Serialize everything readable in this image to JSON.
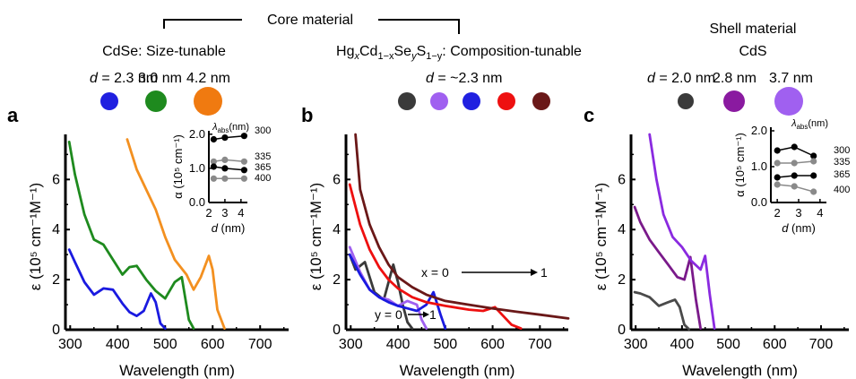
{
  "header": {
    "core_material": "Core material",
    "cdse_label": "CdSe: Size-tunable",
    "hgcdses_label": {
      "hg": "Hg",
      "x": "x",
      "cd": "Cd",
      "sub": "1−x",
      "se": "Se",
      "y": "y",
      "s": "S",
      "sub2": "1−y",
      "rest": ": Composition-tunable"
    },
    "shell_material": "Shell material",
    "shell_cds": "CdS"
  },
  "panels": [
    {
      "letter": "a",
      "sizes_prefix": "d",
      "sizes": [
        "= 2.3 nm",
        "3.0 nm",
        "4.2 nm"
      ],
      "dots": [
        "#2020e0",
        "#1e8a1e",
        "#f07a10"
      ],
      "xlabel": "Wavelength (nm)",
      "ylabel": "ε (10⁵ cm⁻¹M⁻¹)",
      "xticks": [
        "300",
        "400",
        "500",
        "600",
        "700"
      ],
      "yticks": [
        "0",
        "2",
        "4",
        "6"
      ]
    },
    {
      "letter": "b",
      "sizes_prefix": "d",
      "sizes": [
        "= ~2.3 nm"
      ],
      "dots": [
        "#3a3a3a",
        "#a060f0",
        "#2020e0",
        "#ee1010",
        "#6a1818"
      ],
      "xlabel": "Wavelength (nm)",
      "ylabel": "ε (10⁵ cm⁻¹M⁻¹)",
      "xticks": [
        "300",
        "400",
        "500",
        "600",
        "700"
      ],
      "yticks": [
        "0",
        "2",
        "4",
        "6"
      ],
      "annotations": {
        "x_arrow": "x = 0",
        "x_end": "1",
        "y_arrow": "y = 0",
        "y_end": "1"
      }
    },
    {
      "letter": "c",
      "sizes_prefix": "d",
      "sizes": [
        "= 2.0 nm",
        "2.8 nm",
        "3.7 nm"
      ],
      "dots": [
        "#3a3a3a",
        "#8a1aa0",
        "#a060f0"
      ],
      "xlabel": "Wavelength (nm)",
      "ylabel": "ε (10⁵ cm⁻¹M⁻¹)",
      "xticks": [
        "300",
        "400",
        "500",
        "600",
        "700"
      ],
      "yticks": [
        "0",
        "2",
        "4",
        "6"
      ]
    }
  ],
  "insets": [
    {
      "ylabel": "α (10⁵ cm⁻¹)",
      "xlabel": "d (nm)",
      "xticks": [
        "2",
        "3",
        "4"
      ],
      "yticks": [
        "0.0",
        "1.0",
        "2.0"
      ],
      "lambda_label": "λabs(nm)",
      "series_labels": [
        "300",
        "335",
        "365",
        "400"
      ]
    },
    {
      "ylabel": "α (10⁵ cm⁻¹)",
      "xlabel": "d (nm)",
      "xticks": [
        "2",
        "3",
        "4"
      ],
      "yticks": [
        "0.0",
        "1.0",
        "2.0"
      ],
      "lambda_label": "λabs(nm)",
      "series_labels": [
        "300",
        "335",
        "365",
        "400"
      ]
    }
  ],
  "chart_data": [
    {
      "type": "line",
      "panel": "a",
      "xlabel": "Wavelength (nm)",
      "ylabel": "ε (10⁵ cm⁻¹M⁻¹)",
      "xlim": [
        290,
        760
      ],
      "ylim": [
        0,
        7.8
      ],
      "series": [
        {
          "name": "2.3 nm",
          "color": "#1a1ae0",
          "x": [
            298,
            310,
            330,
            350,
            370,
            390,
            410,
            425,
            440,
            455,
            470,
            480,
            490,
            500
          ],
          "y": [
            3.2,
            2.7,
            1.9,
            1.4,
            1.65,
            1.6,
            1.05,
            0.7,
            0.55,
            0.75,
            1.45,
            1.1,
            0.25,
            0.05
          ]
        },
        {
          "name": "3.0 nm",
          "color": "#1e8a1e",
          "x": [
            298,
            310,
            330,
            350,
            370,
            390,
            410,
            425,
            440,
            460,
            480,
            500,
            520,
            535,
            550,
            560
          ],
          "y": [
            7.5,
            6.2,
            4.6,
            3.6,
            3.4,
            2.8,
            2.2,
            2.5,
            2.55,
            2.0,
            1.55,
            1.25,
            1.9,
            2.1,
            0.4,
            0.05
          ]
        },
        {
          "name": "4.2 nm",
          "color": "#f39020",
          "x": [
            420,
            440,
            460,
            480,
            500,
            520,
            545,
            560,
            575,
            592,
            600,
            610,
            625
          ],
          "y": [
            7.6,
            6.4,
            5.6,
            4.8,
            3.7,
            2.8,
            2.2,
            1.6,
            2.1,
            2.95,
            2.4,
            0.8,
            0.05
          ]
        }
      ]
    },
    {
      "type": "line",
      "panel": "b",
      "xlabel": "Wavelength (nm)",
      "ylabel": "ε (10⁵ cm⁻¹M⁻¹)",
      "xlim": [
        290,
        760
      ],
      "ylim": [
        0,
        7.8
      ],
      "series": [
        {
          "name": "x=0",
          "color": "#3a3a3a",
          "x": [
            298,
            310,
            330,
            350,
            370,
            390,
            400,
            410,
            420,
            430
          ],
          "y": [
            3.0,
            2.4,
            2.7,
            1.5,
            1.2,
            2.6,
            1.9,
            1.0,
            0.3,
            0.05
          ]
        },
        {
          "name": "",
          "color": "#a060f0",
          "x": [
            298,
            320,
            340,
            360,
            380,
            400,
            420,
            440,
            450,
            460
          ],
          "y": [
            3.3,
            2.3,
            1.6,
            1.3,
            1.2,
            0.95,
            1.15,
            1.0,
            0.4,
            0.05
          ]
        },
        {
          "name": "",
          "color": "#1a1ae0",
          "x": [
            298,
            320,
            340,
            360,
            380,
            400,
            420,
            440,
            460,
            475,
            490,
            500
          ],
          "y": [
            3.0,
            2.2,
            1.6,
            1.3,
            1.1,
            0.95,
            0.85,
            0.75,
            1.0,
            1.5,
            0.6,
            0.05
          ]
        },
        {
          "name": "",
          "color": "#ee1010",
          "x": [
            298,
            320,
            340,
            360,
            380,
            400,
            430,
            460,
            500,
            550,
            580,
            605,
            620,
            640,
            660
          ],
          "y": [
            5.8,
            4.2,
            3.2,
            2.5,
            2.0,
            1.65,
            1.3,
            1.1,
            0.95,
            0.8,
            0.75,
            0.9,
            0.6,
            0.2,
            0.05
          ]
        },
        {
          "name": "x=1",
          "color": "#6a1818",
          "x": [
            310,
            320,
            340,
            360,
            380,
            400,
            430,
            460,
            500,
            550,
            600,
            650,
            700,
            760
          ],
          "y": [
            7.8,
            5.6,
            4.2,
            3.3,
            2.6,
            2.1,
            1.7,
            1.4,
            1.15,
            1.0,
            0.85,
            0.72,
            0.6,
            0.45
          ]
        }
      ]
    },
    {
      "type": "line",
      "panel": "c",
      "xlabel": "Wavelength (nm)",
      "ylabel": "ε (10⁵ cm⁻¹M⁻¹)",
      "xlim": [
        290,
        760
      ],
      "ylim": [
        0,
        7.8
      ],
      "series": [
        {
          "name": "2.0 nm",
          "color": "#4a4a4a",
          "x": [
            298,
            310,
            330,
            350,
            370,
            385,
            395,
            405,
            415
          ],
          "y": [
            1.5,
            1.45,
            1.3,
            0.95,
            1.1,
            1.2,
            0.9,
            0.2,
            0.02
          ]
        },
        {
          "name": "2.8 nm",
          "color": "#7a1a8a",
          "x": [
            298,
            310,
            330,
            350,
            370,
            390,
            405,
            418,
            430,
            440
          ],
          "y": [
            4.9,
            4.3,
            3.6,
            3.1,
            2.6,
            2.1,
            2.0,
            2.9,
            1.2,
            0.05
          ]
        },
        {
          "name": "3.7 nm",
          "color": "#8a2ae0",
          "x": [
            330,
            345,
            360,
            380,
            400,
            420,
            440,
            450,
            460,
            470
          ],
          "y": [
            7.8,
            6.0,
            4.6,
            3.7,
            3.3,
            2.75,
            2.4,
            2.95,
            1.4,
            0.05
          ]
        }
      ]
    },
    {
      "type": "line",
      "panel": "a-inset",
      "xlabel": "d (nm)",
      "ylabel": "α (10⁵ cm⁻¹)",
      "xlim": [
        2,
        4.4
      ],
      "ylim": [
        0,
        2.1
      ],
      "series": [
        {
          "name": "300",
          "color": "#000000",
          "x": [
            2.3,
            3.0,
            4.2
          ],
          "y": [
            1.85,
            1.9,
            1.95
          ]
        },
        {
          "name": "335",
          "color": "#8a8a8a",
          "x": [
            2.3,
            3.0,
            4.2
          ],
          "y": [
            1.2,
            1.25,
            1.2
          ]
        },
        {
          "name": "365",
          "color": "#000000",
          "x": [
            2.3,
            3.0,
            4.2
          ],
          "y": [
            1.05,
            1.0,
            0.95
          ]
        },
        {
          "name": "400",
          "color": "#8a8a8a",
          "x": [
            2.3,
            3.0,
            4.2
          ],
          "y": [
            0.7,
            0.7,
            0.7
          ]
        }
      ]
    },
    {
      "type": "line",
      "panel": "c-inset",
      "xlabel": "d (nm)",
      "ylabel": "α (10⁵ cm⁻¹)",
      "xlim": [
        1.7,
        4.3
      ],
      "ylim": [
        0,
        2.1
      ],
      "series": [
        {
          "name": "300",
          "color": "#000000",
          "x": [
            2.0,
            2.8,
            3.7
          ],
          "y": [
            1.45,
            1.55,
            1.3
          ]
        },
        {
          "name": "335",
          "color": "#8a8a8a",
          "x": [
            2.0,
            2.8,
            3.7
          ],
          "y": [
            1.1,
            1.1,
            1.15
          ]
        },
        {
          "name": "365",
          "color": "#000000",
          "x": [
            2.0,
            2.8,
            3.7
          ],
          "y": [
            0.7,
            0.75,
            0.75
          ]
        },
        {
          "name": "400",
          "color": "#8a8a8a",
          "x": [
            2.0,
            2.8,
            3.7
          ],
          "y": [
            0.5,
            0.45,
            0.3
          ]
        }
      ]
    }
  ]
}
